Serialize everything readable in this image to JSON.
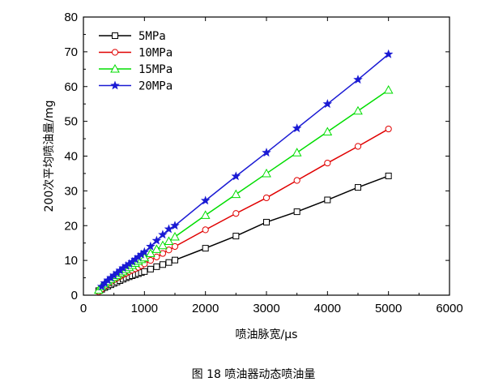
{
  "figure": {
    "caption": "图 18  喷油器动态喷油量"
  },
  "chart_data": {
    "type": "line",
    "xlabel": "喷油脉宽/μs",
    "ylabel": "200次平均喷油量/mg",
    "xlim": [
      0,
      6000
    ],
    "ylim": [
      0,
      80
    ],
    "xticks": [
      "0",
      "1000",
      "2000",
      "3000",
      "4000",
      "5000",
      "6000"
    ],
    "yticks": [
      "0",
      "10",
      "20",
      "30",
      "40",
      "50",
      "60",
      "70",
      "80"
    ],
    "grid": false,
    "legend_position": "top-left",
    "series": [
      {
        "name": "5MPa",
        "color": "#000000",
        "marker": "square",
        "x": [
          250,
          300,
          350,
          400,
          450,
          500,
          550,
          600,
          650,
          700,
          750,
          800,
          850,
          900,
          950,
          1000,
          1100,
          1200,
          1300,
          1400,
          1500,
          2000,
          2500,
          3000,
          3500,
          4000,
          4500,
          5000
        ],
        "y": [
          1.3,
          1.7,
          2.2,
          2.6,
          3.0,
          3.4,
          3.8,
          4.2,
          4.6,
          5.0,
          5.3,
          5.6,
          5.9,
          6.2,
          6.5,
          6.8,
          7.5,
          8.2,
          8.8,
          9.4,
          10.1,
          13.5,
          17.0,
          21.0,
          24.0,
          27.4,
          31.0,
          34.3
        ]
      },
      {
        "name": "10MPa",
        "color": "#e00000",
        "marker": "circle",
        "x": [
          250,
          300,
          350,
          400,
          450,
          500,
          550,
          600,
          650,
          700,
          750,
          800,
          850,
          900,
          950,
          1000,
          1100,
          1200,
          1300,
          1400,
          1500,
          2000,
          2500,
          3000,
          3500,
          4000,
          4500,
          5000
        ],
        "y": [
          1.0,
          1.8,
          2.6,
          3.3,
          3.9,
          4.4,
          4.9,
          5.4,
          5.9,
          6.3,
          6.8,
          7.2,
          7.6,
          8.0,
          8.5,
          9.0,
          10.0,
          11.0,
          12.0,
          13.0,
          14.0,
          18.8,
          23.5,
          28.0,
          33.0,
          38.0,
          42.8,
          47.8
        ]
      },
      {
        "name": "15MPa",
        "color": "#00dd00",
        "marker": "triangle",
        "x": [
          250,
          300,
          350,
          400,
          450,
          500,
          550,
          600,
          650,
          700,
          750,
          800,
          850,
          900,
          950,
          1000,
          1100,
          1200,
          1300,
          1400,
          1500,
          2000,
          2500,
          3000,
          3500,
          4000,
          4500,
          5000
        ],
        "y": [
          1.5,
          2.5,
          3.3,
          4.0,
          4.6,
          5.2,
          5.7,
          6.3,
          6.8,
          7.4,
          8.0,
          8.6,
          9.2,
          9.8,
          10.3,
          10.8,
          12.0,
          13.2,
          14.3,
          15.5,
          16.8,
          23.0,
          29.0,
          35.0,
          41.0,
          47.0,
          53.0,
          59.0
        ]
      },
      {
        "name": "20MPa",
        "color": "#1a1ad4",
        "marker": "star",
        "x": [
          300,
          350,
          400,
          450,
          500,
          550,
          600,
          650,
          700,
          750,
          800,
          850,
          900,
          950,
          1000,
          1100,
          1200,
          1300,
          1400,
          1500,
          2000,
          2500,
          3000,
          3500,
          4000,
          4500,
          5000
        ],
        "y": [
          2.5,
          3.5,
          4.3,
          5.0,
          5.7,
          6.4,
          7.1,
          7.8,
          8.4,
          9.0,
          9.6,
          10.3,
          11.0,
          11.7,
          12.4,
          14.0,
          15.7,
          17.4,
          19.0,
          20.0,
          27.2,
          34.2,
          41.0,
          48.0,
          55.0,
          62.0,
          69.3
        ]
      }
    ]
  }
}
